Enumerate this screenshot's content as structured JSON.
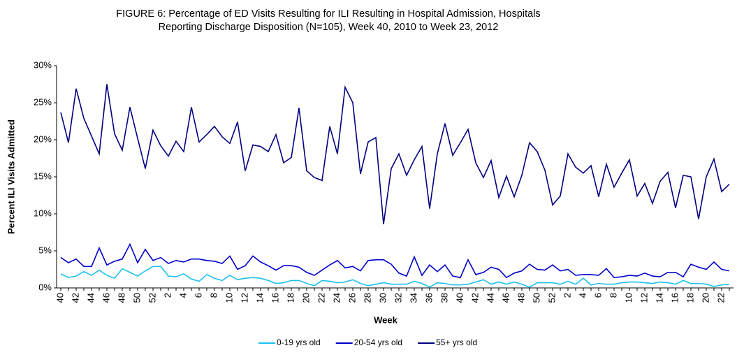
{
  "chart_data": {
    "type": "line",
    "title": [
      "FIGURE 6: Percentage of ED Visits Resulting for ILI Resulting in Hospital Admission, Hospitals",
      "Reporting Discharge Disposition (N=105), Week 40, 2010 to Week 23, 2012"
    ],
    "x_label": "Week",
    "y_label": "Percent ILI Visits Admitted",
    "categories": [
      "40",
      null,
      "42",
      null,
      "44",
      null,
      "46",
      null,
      "48",
      null,
      "50",
      null,
      "52",
      null,
      "2",
      null,
      "4",
      null,
      "6",
      null,
      "8",
      null,
      "10",
      null,
      "12",
      null,
      "14",
      null,
      "16",
      null,
      "18",
      null,
      "20",
      null,
      "22",
      null,
      "24",
      null,
      "26",
      null,
      "28",
      null,
      "30",
      null,
      "32",
      null,
      "34",
      null,
      "36",
      null,
      "38",
      null,
      "40",
      null,
      "42",
      null,
      "44",
      null,
      "46",
      null,
      "48",
      null,
      "50",
      null,
      "52",
      null,
      "2",
      null,
      "4",
      null,
      "6",
      null,
      "8",
      null,
      "10",
      null,
      "12",
      null,
      "14",
      null,
      "16",
      null,
      "18",
      null,
      "20",
      null,
      "22",
      null
    ],
    "series": [
      {
        "name": "0-19 yrs old",
        "color": "#1cc0f0",
        "values": [
          1.9,
          1.4,
          1.6,
          2.2,
          1.7,
          2.4,
          1.7,
          1.3,
          2.6,
          2.1,
          1.6,
          2.3,
          2.9,
          2.9,
          1.6,
          1.5,
          1.9,
          1.2,
          0.9,
          1.8,
          1.3,
          1.0,
          1.7,
          1.1,
          1.3,
          1.4,
          1.3,
          1.0,
          0.6,
          0.7,
          1.0,
          1.0,
          0.6,
          0.3,
          1.0,
          0.9,
          0.7,
          0.8,
          1.1,
          0.6,
          0.3,
          0.5,
          0.7,
          0.5,
          0.5,
          0.5,
          0.9,
          0.6,
          0.1,
          0.7,
          0.6,
          0.4,
          0.4,
          0.5,
          0.8,
          1.1,
          0.5,
          0.8,
          0.5,
          0.8,
          0.5,
          0.1,
          0.7,
          0.7,
          0.7,
          0.5,
          0.9,
          0.5,
          1.3,
          0.4,
          0.6,
          0.5,
          0.5,
          0.7,
          0.8,
          0.8,
          0.7,
          0.6,
          0.8,
          0.7,
          0.5,
          1.0,
          0.6,
          0.6,
          0.5,
          0.2,
          0.4,
          0.5
        ]
      },
      {
        "name": "20-54 yrs old",
        "color": "#0000cc",
        "values": [
          4.1,
          3.4,
          3.9,
          2.9,
          2.9,
          5.4,
          3.1,
          3.6,
          3.9,
          5.9,
          3.4,
          5.2,
          3.7,
          4.1,
          3.3,
          3.7,
          3.5,
          3.9,
          3.9,
          3.7,
          3.6,
          3.3,
          4.3,
          2.5,
          3.0,
          4.3,
          3.5,
          3.0,
          2.4,
          3.0,
          3.0,
          2.8,
          2.1,
          1.7,
          2.4,
          3.1,
          3.7,
          2.7,
          2.9,
          2.3,
          3.7,
          3.8,
          3.8,
          3.2,
          2.0,
          1.6,
          4.2,
          1.7,
          3.1,
          2.2,
          3.1,
          1.6,
          1.4,
          3.8,
          1.8,
          2.1,
          2.8,
          2.5,
          1.4,
          2.0,
          2.3,
          3.2,
          2.5,
          2.4,
          3.1,
          2.3,
          2.5,
          1.7,
          1.8,
          1.8,
          1.7,
          2.6,
          1.4,
          1.5,
          1.7,
          1.6,
          2.0,
          1.6,
          1.5,
          2.1,
          2.1,
          1.5,
          3.2,
          2.8,
          2.5,
          3.5,
          2.5,
          2.3
        ]
      },
      {
        "name": "55+ yrs old",
        "color": "#000080",
        "values": [
          23.7,
          19.6,
          26.9,
          22.9,
          20.5,
          18.1,
          27.5,
          20.8,
          18.6,
          24.4,
          20.2,
          16.1,
          21.3,
          19.2,
          17.8,
          19.8,
          18.4,
          24.4,
          19.7,
          20.7,
          21.8,
          20.4,
          19.5,
          22.4,
          15.8,
          19.3,
          19.1,
          18.4,
          20.7,
          16.9,
          17.6,
          24.3,
          15.8,
          14.9,
          14.5,
          21.8,
          18.1,
          27.1,
          25.0,
          15.4,
          19.7,
          20.3,
          8.6,
          16.1,
          18.1,
          15.2,
          17.3,
          19.1,
          10.7,
          18.1,
          22.2,
          17.9,
          19.6,
          21.4,
          16.9,
          14.9,
          17.2,
          12.2,
          15.1,
          12.3,
          15.2,
          19.6,
          18.4,
          15.9,
          11.2,
          12.4,
          18.1,
          16.3,
          15.5,
          16.5,
          12.3,
          16.7,
          13.6,
          15.5,
          17.3,
          12.4,
          14.1,
          11.4,
          14.4,
          15.6,
          10.8,
          15.2,
          15.0,
          9.3,
          15.0,
          17.4,
          13.0,
          14.0
        ]
      }
    ],
    "ylim": [
      0,
      30
    ],
    "yticks": [
      {
        "value": 0,
        "label": "0%"
      },
      {
        "value": 5,
        "label": "5%"
      },
      {
        "value": 10,
        "label": "10%"
      },
      {
        "value": 15,
        "label": "15%"
      },
      {
        "value": 20,
        "label": "20%"
      },
      {
        "value": 25,
        "label": "25%"
      },
      {
        "value": 30,
        "label": "30%"
      }
    ],
    "grid": false,
    "legend": "bottom"
  }
}
